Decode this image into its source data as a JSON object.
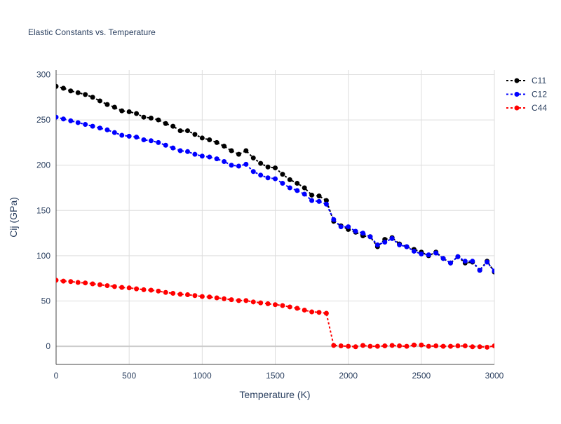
{
  "chart_data": {
    "type": "line",
    "title": "Elastic Constants vs. Temperature",
    "xlabel": "Temperature (K)",
    "ylabel": "Cij (GPa)",
    "xlim": [
      0,
      3000
    ],
    "ylim": [
      -20,
      305
    ],
    "xticks": [
      0,
      500,
      1000,
      1500,
      2000,
      2500,
      3000
    ],
    "yticks": [
      0,
      50,
      100,
      150,
      200,
      250,
      300
    ],
    "grid": true,
    "legend_position": "top-right",
    "x": [
      0,
      50,
      100,
      150,
      200,
      250,
      300,
      350,
      400,
      450,
      500,
      550,
      600,
      650,
      700,
      750,
      800,
      850,
      900,
      950,
      1000,
      1050,
      1100,
      1150,
      1200,
      1250,
      1300,
      1350,
      1400,
      1450,
      1500,
      1550,
      1600,
      1650,
      1700,
      1750,
      1800,
      1850,
      1900,
      1950,
      2000,
      2050,
      2100,
      2150,
      2200,
      2250,
      2300,
      2350,
      2400,
      2450,
      2500,
      2550,
      2600,
      2650,
      2700,
      2750,
      2800,
      2850,
      2900,
      2950,
      3000
    ],
    "series": [
      {
        "name": "C11",
        "color": "#000000",
        "values": [
          287,
          285,
          282,
          280,
          278,
          275,
          271,
          267,
          264,
          260,
          259,
          257,
          253,
          252,
          250,
          246,
          243,
          238,
          238,
          234,
          230,
          228,
          225,
          221,
          216,
          212,
          216,
          208,
          202,
          198,
          197,
          190,
          184,
          180,
          175,
          167,
          166,
          161,
          138,
          133,
          129,
          126,
          122,
          121,
          110,
          118,
          120,
          113,
          110,
          107,
          104,
          100,
          104,
          97,
          92,
          99,
          92,
          93,
          84,
          94,
          82
        ]
      },
      {
        "name": "C12",
        "color": "#0000ff",
        "values": [
          253,
          251,
          249,
          247,
          245,
          243,
          241,
          239,
          236,
          233,
          232,
          231,
          228,
          227,
          225,
          222,
          219,
          216,
          215,
          212,
          210,
          209,
          207,
          204,
          200,
          199,
          201,
          193,
          189,
          186,
          185,
          180,
          175,
          172,
          168,
          161,
          160,
          157,
          140,
          132,
          132,
          127,
          125,
          121,
          112,
          115,
          119,
          112,
          110,
          105,
          102,
          101,
          103,
          97,
          92,
          99,
          94,
          94,
          84,
          93,
          83
        ]
      },
      {
        "name": "C44",
        "color": "#ff0000",
        "values": [
          73,
          72,
          71.5,
          70.5,
          70,
          69,
          68,
          67,
          66,
          65,
          64.5,
          63.5,
          62.5,
          62,
          61,
          59.5,
          58.5,
          57.5,
          57,
          56,
          55,
          54.5,
          53.5,
          52.5,
          51.5,
          50.5,
          50.5,
          49,
          48,
          47,
          46,
          45,
          43.5,
          42,
          40,
          38,
          37.5,
          36.5,
          1,
          0.5,
          0,
          -0.5,
          1,
          0,
          0,
          0.5,
          1,
          0.5,
          0,
          1.5,
          1.5,
          0,
          0.5,
          0,
          0,
          0.5,
          0.5,
          -0.5,
          -0.5,
          -1,
          0.5
        ]
      }
    ]
  }
}
